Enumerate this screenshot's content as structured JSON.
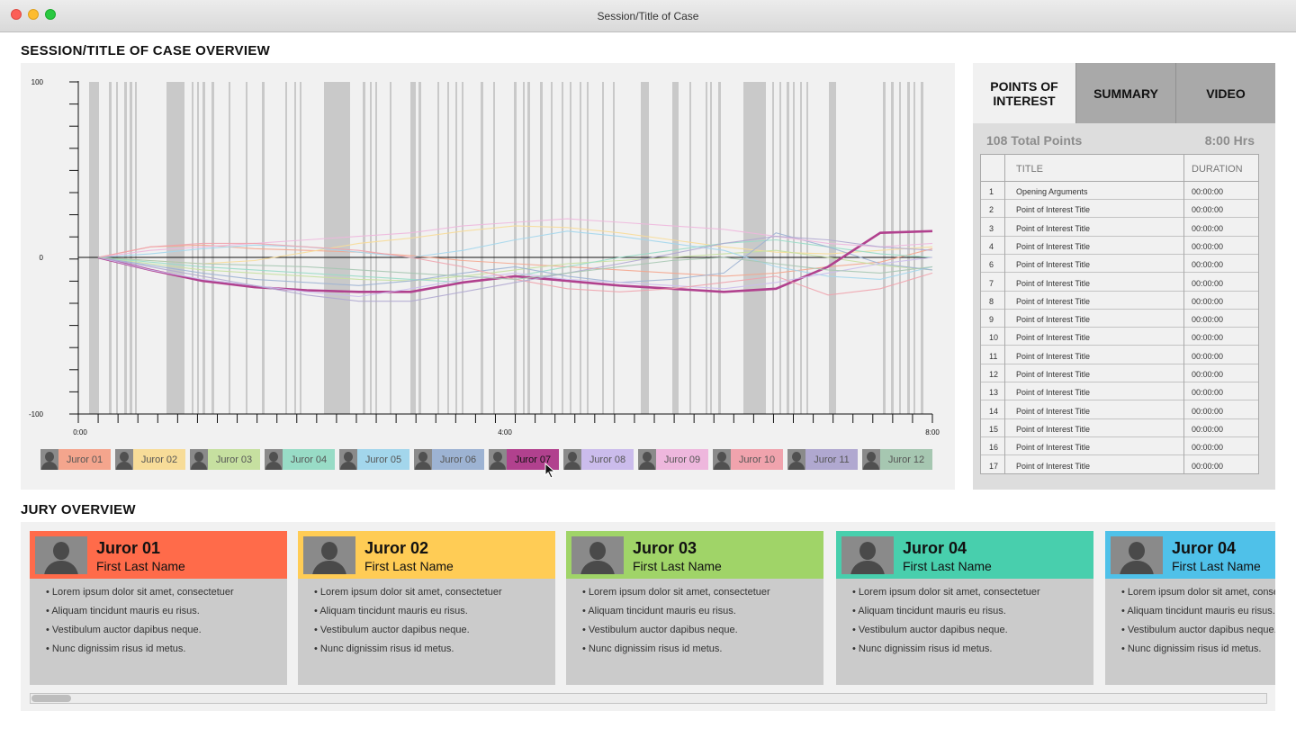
{
  "window": {
    "title": "Session/Title of Case"
  },
  "overview": {
    "title": "SESSION/TITLE OF CASE OVERVIEW"
  },
  "colors": {
    "juror_01": "#f4a58d",
    "juror_02": "#f7dc98",
    "juror_03": "#c6e0a0",
    "juror_04": "#98dcc6",
    "juror_05": "#a3d6ec",
    "juror_06": "#9db3d3",
    "juror_07": "#b1418e",
    "juror_08": "#cbbcec",
    "juror_09": "#eeb7dd",
    "juror_10": "#f0a3ad",
    "juror_11": "#b0a8d0",
    "juror_12": "#a6c7b1",
    "highlight_band": "#c9c9c9"
  },
  "chart_data": {
    "type": "line",
    "x": [
      "0:00",
      "0:30",
      "1:00",
      "1:30",
      "2:00",
      "2:30",
      "3:00",
      "3:30",
      "4:00",
      "4:30",
      "5:00",
      "5:30",
      "6:00",
      "6:30",
      "7:00",
      "7:30",
      "8:00"
    ],
    "x_tick_labels": [
      "0:00",
      "4:00",
      "8:00"
    ],
    "y_tick_labels": [
      "100",
      "0",
      "-100"
    ],
    "ylim": [
      -100,
      100
    ],
    "selected_series": "Juror 07",
    "series": [
      {
        "name": "Juror 01",
        "values": [
          0,
          6,
          7,
          5,
          4,
          3,
          1,
          -2,
          -4,
          -6,
          -8,
          -10,
          -12,
          -10,
          -6,
          -3,
          5
        ]
      },
      {
        "name": "Juror 02",
        "values": [
          0,
          -2,
          -4,
          -2,
          3,
          8,
          11,
          15,
          18,
          17,
          14,
          10,
          6,
          3,
          2,
          4,
          6
        ]
      },
      {
        "name": "Juror 03",
        "values": [
          0,
          -4,
          -8,
          -10,
          -12,
          -14,
          -15,
          -12,
          -8,
          -4,
          -2,
          0,
          2,
          4,
          0,
          -5,
          -8
        ]
      },
      {
        "name": "Juror 04",
        "values": [
          0,
          -3,
          -6,
          -8,
          -10,
          -12,
          -14,
          -16,
          -12,
          -6,
          0,
          4,
          8,
          10,
          6,
          2,
          0
        ]
      },
      {
        "name": "Juror 05",
        "values": [
          0,
          2,
          5,
          7,
          6,
          3,
          0,
          4,
          10,
          15,
          12,
          8,
          4,
          -6,
          -12,
          -14,
          -6
        ]
      },
      {
        "name": "Juror 06",
        "values": [
          0,
          -5,
          -10,
          -14,
          -16,
          -18,
          -15,
          -10,
          -6,
          -12,
          -16,
          -14,
          -10,
          14,
          6,
          -4,
          -8
        ]
      },
      {
        "name": "Juror 07",
        "values": [
          0,
          -8,
          -15,
          -19,
          -21,
          -22,
          -22,
          -16,
          -12,
          -15,
          -18,
          -20,
          -22,
          -20,
          -6,
          14,
          15
        ]
      },
      {
        "name": "Juror 08",
        "values": [
          0,
          -8,
          -14,
          -18,
          -22,
          -25,
          -20,
          -14,
          -10,
          -14,
          -16,
          -18,
          -20,
          -16,
          -10,
          -4,
          0
        ]
      },
      {
        "name": "Juror 09",
        "values": [
          0,
          4,
          6,
          8,
          10,
          12,
          14,
          18,
          20,
          22,
          20,
          18,
          16,
          12,
          8,
          6,
          8
        ]
      },
      {
        "name": "Juror 10",
        "values": [
          0,
          6,
          8,
          8,
          6,
          4,
          0,
          -6,
          -14,
          -20,
          -22,
          -20,
          -16,
          -12,
          -24,
          -20,
          -10
        ]
      },
      {
        "name": "Juror 11",
        "values": [
          0,
          -6,
          -12,
          -18,
          -24,
          -28,
          -28,
          -22,
          -16,
          -10,
          -4,
          2,
          8,
          12,
          10,
          6,
          4
        ]
      },
      {
        "name": "Juror 12",
        "values": [
          0,
          -2,
          -4,
          -5,
          -6,
          -8,
          -10,
          -12,
          -14,
          -10,
          -6,
          -2,
          0,
          -4,
          -8,
          -10,
          -6
        ]
      }
    ]
  },
  "legend": [
    {
      "label": "Juror 01",
      "color": "#f4a58d"
    },
    {
      "label": "Juror 02",
      "color": "#f7dc98"
    },
    {
      "label": "Juror 03",
      "color": "#c6e0a0"
    },
    {
      "label": "Juror 04",
      "color": "#98dcc6"
    },
    {
      "label": "Juror 05",
      "color": "#a3d6ec"
    },
    {
      "label": "Juror 06",
      "color": "#9db3d3"
    },
    {
      "label": "Juror 07",
      "color": "#b1418e"
    },
    {
      "label": "Juror 08",
      "color": "#cbbcec"
    },
    {
      "label": "Juror 09",
      "color": "#eeb7dd"
    },
    {
      "label": "Juror 10",
      "color": "#f0a3ad"
    },
    {
      "label": "Juror 11",
      "color": "#b0a8d0"
    },
    {
      "label": "Juror 12",
      "color": "#a6c7b1"
    }
  ],
  "poi": {
    "tabs": [
      "POINTS OF INTEREST",
      "SUMMARY",
      "VIDEO"
    ],
    "total_points": "108 Total Points",
    "total_hours": "8:00 Hrs",
    "columns": {
      "title": "TITLE",
      "duration": "DURATION"
    },
    "rows": [
      {
        "num": "1",
        "title": "Opening Arguments",
        "duration": "00:00:00"
      },
      {
        "num": "2",
        "title": "Point of Interest Title",
        "duration": "00:00:00"
      },
      {
        "num": "3",
        "title": "Point of Interest Title",
        "duration": "00:00:00"
      },
      {
        "num": "4",
        "title": "Point of Interest Title",
        "duration": "00:00:00"
      },
      {
        "num": "6",
        "title": "Point of Interest Title",
        "duration": "00:00:00"
      },
      {
        "num": "7",
        "title": "Point of Interest Title",
        "duration": "00:00:00"
      },
      {
        "num": "8",
        "title": "Point of Interest Title",
        "duration": "00:00:00"
      },
      {
        "num": "9",
        "title": "Point of Interest Title",
        "duration": "00:00:00"
      },
      {
        "num": "10",
        "title": "Point of Interest Title",
        "duration": "00:00:00"
      },
      {
        "num": "11",
        "title": "Point of Interest Title",
        "duration": "00:00:00"
      },
      {
        "num": "12",
        "title": "Point of Interest Title",
        "duration": "00:00:00"
      },
      {
        "num": "13",
        "title": "Point of Interest Title",
        "duration": "00:00:00"
      },
      {
        "num": "14",
        "title": "Point of Interest Title",
        "duration": "00:00:00"
      },
      {
        "num": "15",
        "title": "Point of Interest Title",
        "duration": "00:00:00"
      },
      {
        "num": "16",
        "title": "Point of Interest Title",
        "duration": "00:00:00"
      },
      {
        "num": "17",
        "title": "Point of Interest Title",
        "duration": "00:00:00"
      }
    ]
  },
  "jury": {
    "title": "JURY OVERVIEW",
    "cards": [
      {
        "name": "Juror 01",
        "sub": "First Last Name",
        "color": "#ff6b4a"
      },
      {
        "name": "Juror 02",
        "sub": "First Last Name",
        "color": "#ffcc55"
      },
      {
        "name": "Juror 03",
        "sub": "First Last Name",
        "color": "#a0d468"
      },
      {
        "name": "Juror 04",
        "sub": "First Last Name",
        "color": "#48cfad"
      },
      {
        "name": "Juror 04",
        "sub": "First Last Name",
        "color": "#4fc1e9"
      }
    ],
    "bullets": [
      "Lorem ipsum dolor sit amet, consectetuer",
      "Aliquam tincidunt mauris eu risus.",
      "Vestibulum auctor dapibus neque.",
      "Nunc dignissim risus id metus."
    ]
  }
}
